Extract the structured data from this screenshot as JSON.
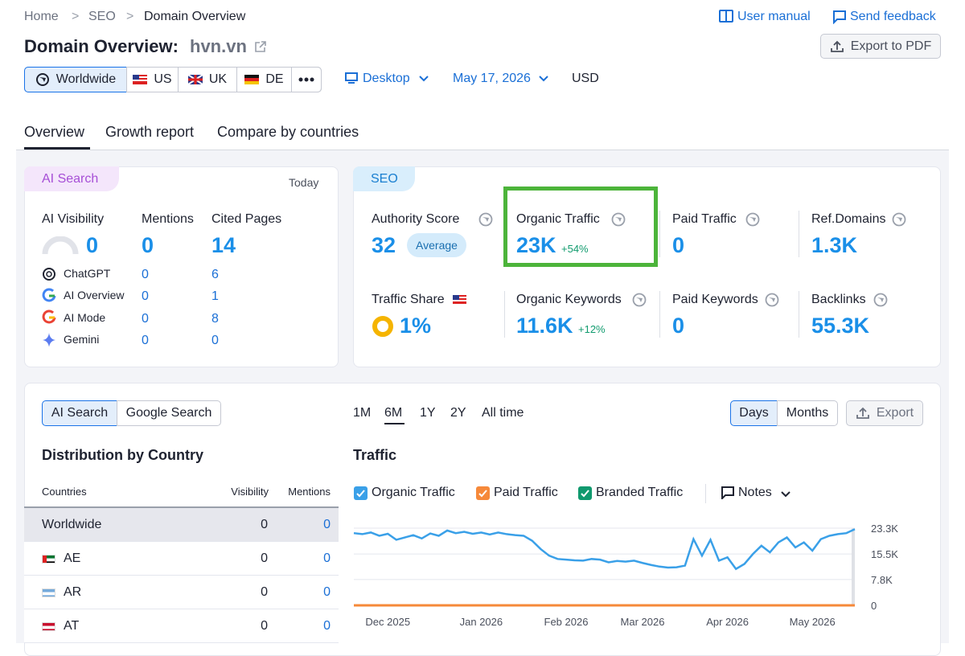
{
  "breadcrumb": [
    "Home",
    "SEO",
    "Domain Overview"
  ],
  "header": {
    "title": "Domain Overview:",
    "domain": "hvn.vn",
    "user_manual": "User manual",
    "send_feedback": "Send feedback",
    "export_pdf": "Export to PDF"
  },
  "filters": {
    "regions": [
      "Worldwide",
      "US",
      "UK",
      "DE"
    ],
    "device": "Desktop",
    "date": "May 17, 2026",
    "currency": "USD"
  },
  "tabs": [
    "Overview",
    "Growth report",
    "Compare by countries"
  ],
  "ai_panel": {
    "badge": "AI Search",
    "date": "Today",
    "metrics": [
      {
        "label": "AI Visibility",
        "value": 0
      },
      {
        "label": "Mentions",
        "value": 0
      },
      {
        "label": "Cited Pages",
        "value": 14
      }
    ],
    "rows": [
      {
        "name": "ChatGPT",
        "mentions": 0,
        "cited": 6
      },
      {
        "name": "AI Overview",
        "mentions": 0,
        "cited": 1
      },
      {
        "name": "AI Mode",
        "mentions": 0,
        "cited": 8
      },
      {
        "name": "Gemini",
        "mentions": 0,
        "cited": 0
      }
    ]
  },
  "seo_panel": {
    "badge": "SEO",
    "authority": {
      "label": "Authority Score",
      "value": 32,
      "badge": "Average"
    },
    "organic_traffic": {
      "label": "Organic Traffic",
      "value": "23K",
      "change": "+54%"
    },
    "paid_traffic": {
      "label": "Paid Traffic",
      "value": 0
    },
    "ref_domains": {
      "label": "Ref.Domains",
      "value": "1.3K"
    },
    "traffic_share": {
      "label": "Traffic Share",
      "value": "1%"
    },
    "organic_keywords": {
      "label": "Organic Keywords",
      "value": "11.6K",
      "change": "+12%"
    },
    "paid_keywords": {
      "label": "Paid Keywords",
      "value": 0
    },
    "backlinks": {
      "label": "Backlinks",
      "value": "55.3K"
    }
  },
  "controls": {
    "source": [
      "AI Search",
      "Google Search"
    ],
    "periods": [
      "1M",
      "6M",
      "1Y",
      "2Y",
      "All time"
    ],
    "granularity": [
      "Days",
      "Months"
    ],
    "export": "Export",
    "notes": "Notes"
  },
  "distribution": {
    "title": "Distribution by Country",
    "columns": [
      "Countries",
      "Visibility",
      "Mentions"
    ],
    "rows": [
      [
        "Worldwide",
        0,
        0
      ],
      [
        "AE",
        0,
        0
      ],
      [
        "AR",
        0,
        0
      ],
      [
        "AT",
        0,
        0
      ]
    ]
  },
  "chart_data": {
    "type": "line",
    "title": "Traffic",
    "categories": [
      null,
      null,
      null,
      null,
      "Dec 2025",
      null,
      null,
      null,
      null,
      null,
      null,
      null,
      null,
      null,
      null,
      "Jan 2026",
      null,
      null,
      null,
      null,
      null,
      null,
      null,
      null,
      null,
      "Feb 2026",
      null,
      null,
      null,
      null,
      null,
      null,
      null,
      null,
      "Mar 2026",
      null,
      null,
      null,
      null,
      null,
      null,
      null,
      null,
      null,
      "Apr 2026",
      null,
      null,
      null,
      null,
      null,
      null,
      null,
      null,
      null,
      "May 2026",
      null,
      null,
      null,
      null,
      null
    ],
    "series": [
      {
        "name": "Organic Traffic",
        "color": "#3aa0e8",
        "values": [
          21800,
          21500,
          22000,
          21000,
          21600,
          19800,
          20500,
          21200,
          20200,
          21700,
          21000,
          22600,
          21800,
          22200,
          21600,
          22000,
          21400,
          22000,
          21500,
          21200,
          21000,
          19500,
          17000,
          15000,
          14000,
          13800,
          13600,
          13500,
          14000,
          13800,
          13000,
          13400,
          13200,
          13500,
          12800,
          12200,
          11700,
          11400,
          11500,
          12000,
          20000,
          15000,
          19800,
          13500,
          14500,
          11000,
          12500,
          15500,
          18000,
          16000,
          19000,
          20500,
          17500,
          19000,
          16500,
          20000,
          21000,
          21500,
          21800,
          23000
        ]
      },
      {
        "name": "Paid Traffic",
        "color": "#f6893a",
        "values": [
          0,
          0,
          0,
          0,
          0,
          0,
          0,
          0,
          0,
          0,
          0,
          0,
          0,
          0,
          0,
          0,
          0,
          0,
          0,
          0,
          0,
          0,
          0,
          0,
          0,
          0,
          0,
          0,
          0,
          0,
          0,
          0,
          0,
          0,
          0,
          0,
          0,
          0,
          0,
          0,
          0,
          0,
          0,
          0,
          0,
          0,
          0,
          0,
          0,
          0,
          0,
          0,
          0,
          0,
          0,
          0,
          0,
          0,
          0,
          0
        ]
      },
      {
        "name": "Branded Traffic",
        "color": "#10996e",
        "values": [
          0,
          0,
          0,
          0,
          0,
          0,
          0,
          0,
          0,
          0,
          0,
          0,
          0,
          0,
          0,
          0,
          0,
          0,
          0,
          0,
          0,
          0,
          0,
          0,
          0,
          0,
          0,
          0,
          0,
          0,
          0,
          0,
          0,
          0,
          0,
          0,
          0,
          0,
          0,
          0,
          0,
          0,
          0,
          0,
          0,
          0,
          0,
          0,
          0,
          0,
          0,
          0,
          0,
          0,
          0,
          0,
          0,
          0,
          0,
          0
        ]
      }
    ],
    "ylim": [
      0,
      23300
    ],
    "yticks": [
      0,
      {
        "value": 7800,
        "label": "7.8K"
      },
      {
        "value": 15500,
        "label": "15.5K"
      },
      {
        "value": 23300,
        "label": "23.3K"
      }
    ],
    "grid": true
  }
}
